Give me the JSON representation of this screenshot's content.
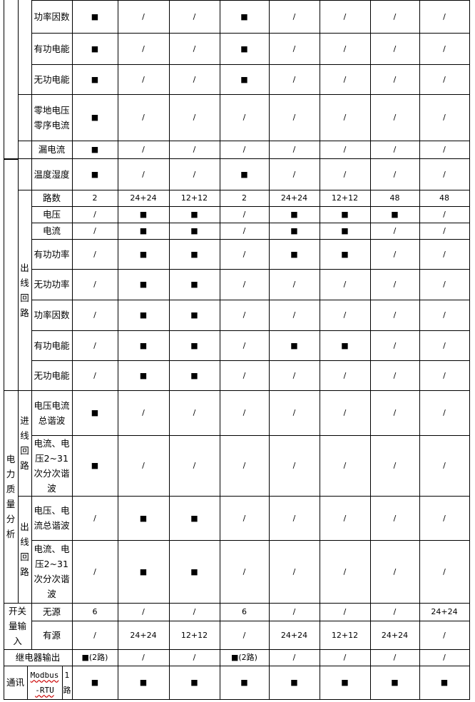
{
  "sections": {
    "outgoing_circuit": "出线回路",
    "power_quality": "电力质量分析",
    "incoming_circuit": "进线回路",
    "outgoing_circuit_2": "出线回路",
    "switch_input": "开关量输入",
    "relay_output": "继电器输出",
    "communication": "通讯",
    "modbus": "Modbus-RTU",
    "one_channel": "1路"
  },
  "rows": [
    {
      "label": "功率因数",
      "values": [
        "■",
        "/",
        "/",
        "■",
        "/",
        "/",
        "/",
        "/"
      ]
    },
    {
      "label": "有功电能",
      "values": [
        "■",
        "/",
        "/",
        "■",
        "/",
        "/",
        "/",
        "/"
      ]
    },
    {
      "label": "无功电能",
      "values": [
        "■",
        "/",
        "/",
        "■",
        "/",
        "/",
        "/",
        "/"
      ]
    },
    {
      "label": "零地电压零序电流",
      "values": [
        "■",
        "/",
        "/",
        "/",
        "/",
        "/",
        "/",
        "/"
      ]
    },
    {
      "label": "漏电流",
      "values": [
        "■",
        "/",
        "/",
        "/",
        "/",
        "/",
        "/",
        "/"
      ]
    },
    {
      "label": "温度湿度",
      "values": [
        "■",
        "/",
        "/",
        "■",
        "/",
        "/",
        "/",
        "/"
      ]
    },
    {
      "label": "路数",
      "values": [
        "2",
        "24+24",
        "12+12",
        "2",
        "24+24",
        "12+12",
        "48",
        "48"
      ]
    },
    {
      "label": "电压",
      "values": [
        "/",
        "■",
        "■",
        "/",
        "■",
        "■",
        "■",
        "/"
      ]
    },
    {
      "label": "电流",
      "values": [
        "/",
        "■",
        "■",
        "/",
        "■",
        "■",
        "/",
        "/"
      ]
    },
    {
      "label": "有功功率",
      "values": [
        "/",
        "■",
        "■",
        "/",
        "■",
        "■",
        "/",
        "/"
      ]
    },
    {
      "label": "无功功率",
      "values": [
        "/",
        "■",
        "■",
        "/",
        "/",
        "/",
        "/",
        "/"
      ]
    },
    {
      "label": "功率因数",
      "values": [
        "/",
        "■",
        "■",
        "/",
        "/",
        "/",
        "/",
        "/"
      ]
    },
    {
      "label": "有功电能",
      "values": [
        "/",
        "■",
        "■",
        "/",
        "■",
        "■",
        "/",
        "/"
      ]
    },
    {
      "label": "无功电能",
      "values": [
        "/",
        "■",
        "■",
        "/",
        "/",
        "/",
        "/",
        "/"
      ]
    },
    {
      "label": "电压电流总谐波",
      "values": [
        "■",
        "/",
        "/",
        "/",
        "/",
        "/",
        "/",
        "/"
      ]
    },
    {
      "label": "电流、电压2~31次分次谐波",
      "values": [
        "■",
        "/",
        "/",
        "/",
        "/",
        "/",
        "/",
        "/"
      ]
    },
    {
      "label": "电压、电流总谐波",
      "values": [
        "/",
        "■",
        "■",
        "/",
        "/",
        "/",
        "/",
        "/"
      ]
    },
    {
      "label": "电流、电压2~31次分次谐波",
      "values": [
        "/",
        "■",
        "■",
        "/",
        "/",
        "/",
        "/",
        "/"
      ]
    },
    {
      "label": "无源",
      "values": [
        "6",
        "/",
        "/",
        "6",
        "/",
        "/",
        "/",
        "24+24"
      ]
    },
    {
      "label": "有源",
      "values": [
        "/",
        "24+24",
        "12+12",
        "/",
        "24+24",
        "12+12",
        "24+24",
        "/"
      ]
    },
    {
      "label": "",
      "values": [
        "■(2路)",
        "/",
        "/",
        "■(2路)",
        "/",
        "/",
        "/",
        "/"
      ]
    },
    {
      "label": "",
      "values": [
        "■",
        "■",
        "■",
        "■",
        "■",
        "■",
        "■",
        "■"
      ]
    }
  ]
}
